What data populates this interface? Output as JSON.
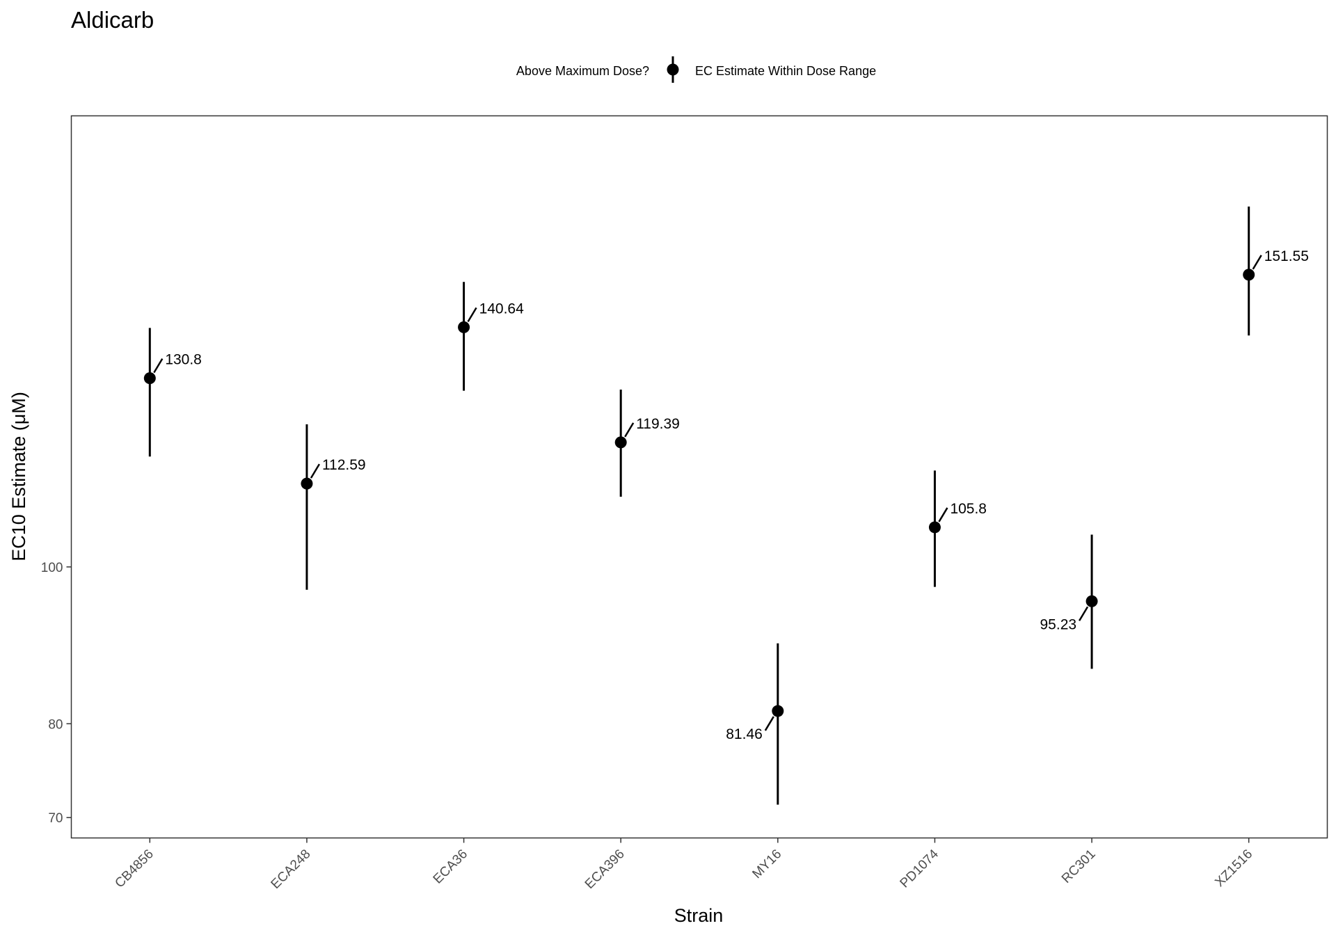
{
  "chart_data": {
    "type": "scatter",
    "title": "Aldicarb",
    "xlabel": "Strain",
    "ylabel": "EC10 Estimate (μM)",
    "y_scale": "log",
    "ylim": [
      68,
      190
    ],
    "y_ticks": [
      70,
      80,
      100
    ],
    "legend": {
      "title": "Above Maximum Dose?",
      "entries": [
        "EC Estimate Within Dose Range"
      ],
      "position": "top"
    },
    "grid": false,
    "categories": [
      "CB4856",
      "ECA248",
      "ECA36",
      "ECA396",
      "MY16",
      "PD1074",
      "RC301",
      "XZ1516"
    ],
    "series": [
      {
        "name": "EC Estimate Within Dose Range",
        "values": [
          130.8,
          112.59,
          140.64,
          119.39,
          81.46,
          105.8,
          95.23,
          151.55
        ],
        "lower": [
          117,
          96.8,
          128.5,
          110.5,
          71.3,
          97.2,
          86.5,
          139
        ],
        "upper": [
          140.5,
          122.5,
          150,
          128.7,
          89.7,
          114.7,
          104.7,
          167
        ],
        "labels": [
          "130.8",
          "112.59",
          "140.64",
          "119.39",
          "81.46",
          "105.8",
          "95.23",
          "151.55"
        ]
      }
    ],
    "label_side": [
      "right",
      "right",
      "right",
      "right",
      "left",
      "right",
      "left",
      "right"
    ]
  }
}
